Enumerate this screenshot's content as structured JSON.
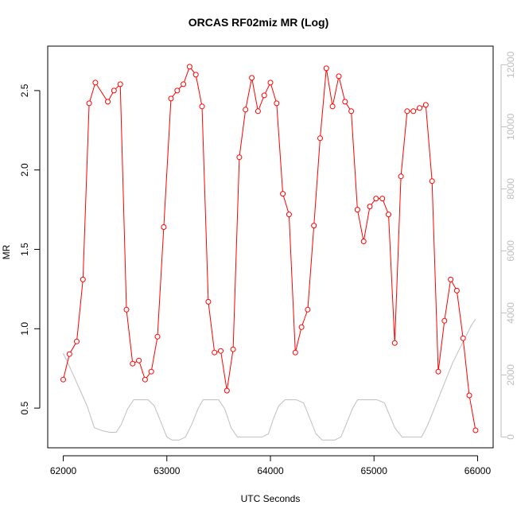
{
  "chart_data": {
    "type": "line",
    "title": "ORCAS RF02miz MR (Log)",
    "xlabel": "UTC Seconds",
    "ylabel": "MR",
    "xlim": [
      61850,
      66150
    ],
    "ylim": [
      0.25,
      2.78
    ],
    "y2lim": [
      -350,
      12600
    ],
    "x_ticks": [
      62000,
      63000,
      64000,
      65000,
      66000
    ],
    "y_ticks": [
      0.5,
      1.0,
      1.5,
      2.0,
      2.5
    ],
    "y_tick_labels": [
      "0.5",
      "1.0",
      "1.5",
      "2.0",
      "2.5"
    ],
    "y2_ticks": [
      0,
      2000,
      4000,
      6000,
      8000,
      10000,
      12000
    ],
    "grid": false,
    "series": [
      {
        "axis": "left",
        "color": "#ff0000",
        "marker": "open-circle",
        "x": [
          62000,
          62060,
          62130,
          62190,
          62250,
          62310,
          62430,
          62490,
          62550,
          62610,
          62670,
          62730,
          62790,
          62850,
          62910,
          62970,
          63040,
          63100,
          63160,
          63220,
          63280,
          63340,
          63400,
          63460,
          63520,
          63580,
          63640,
          63700,
          63760,
          63820,
          63880,
          63940,
          64000,
          64060,
          64120,
          64180,
          64240,
          64300,
          64360,
          64420,
          64480,
          64540,
          64600,
          64660,
          64720,
          64780,
          64840,
          64900,
          64960,
          65020,
          65080,
          65140,
          65200,
          65260,
          65320,
          65380,
          65440,
          65500,
          65560,
          65620,
          65680,
          65740,
          65800,
          65860,
          65920,
          65980
        ],
        "y": [
          0.68,
          0.84,
          0.92,
          1.31,
          2.42,
          2.55,
          2.43,
          2.5,
          2.54,
          1.12,
          0.78,
          0.8,
          0.68,
          0.73,
          0.95,
          1.64,
          2.45,
          2.5,
          2.54,
          2.65,
          2.6,
          2.4,
          1.17,
          0.85,
          0.86,
          0.61,
          0.87,
          2.08,
          2.38,
          2.58,
          2.37,
          2.47,
          2.55,
          2.42,
          1.85,
          1.72,
          0.85,
          1.01,
          1.12,
          1.65,
          2.2,
          2.64,
          2.4,
          2.59,
          2.43,
          2.37,
          1.75,
          1.55,
          1.77,
          1.82,
          1.82,
          1.72,
          0.91,
          1.96,
          2.37,
          2.37,
          2.39,
          2.41,
          1.93,
          0.73,
          1.05,
          1.31,
          1.24,
          0.94,
          0.58,
          0.36
        ]
      },
      {
        "axis": "right",
        "color": "#bebebe",
        "marker": "none",
        "x": [
          62000,
          62070,
          62150,
          62230,
          62300,
          62380,
          62450,
          62510,
          62560,
          62620,
          62680,
          62750,
          62820,
          62880,
          62940,
          63000,
          63050,
          63120,
          63180,
          63240,
          63300,
          63350,
          63420,
          63500,
          63560,
          63620,
          63680,
          63740,
          63800,
          63850,
          63920,
          63980,
          64030,
          64080,
          64140,
          64200,
          64250,
          64320,
          64380,
          64440,
          64500,
          64550,
          64620,
          64680,
          64730,
          64790,
          64840,
          64900,
          64960,
          65030,
          65100,
          65150,
          65200,
          65270,
          65340,
          65400,
          65460,
          65520,
          65580,
          65640,
          65700,
          65760,
          65820,
          65880,
          65940,
          65980
        ],
        "y": [
          2700,
          2200,
          1600,
          1000,
          300,
          200,
          150,
          150,
          400,
          900,
          1200,
          1200,
          1200,
          1000,
          500,
          0,
          -100,
          -100,
          0,
          400,
          900,
          1200,
          1200,
          1200,
          900,
          300,
          0,
          0,
          0,
          0,
          0,
          100,
          600,
          1000,
          1200,
          1200,
          1200,
          1100,
          600,
          100,
          -100,
          -100,
          -100,
          0,
          400,
          900,
          1200,
          1200,
          1200,
          1200,
          1100,
          700,
          300,
          0,
          0,
          0,
          0,
          400,
          900,
          1400,
          1900,
          2400,
          2800,
          3200,
          3600,
          3800
        ]
      }
    ]
  }
}
